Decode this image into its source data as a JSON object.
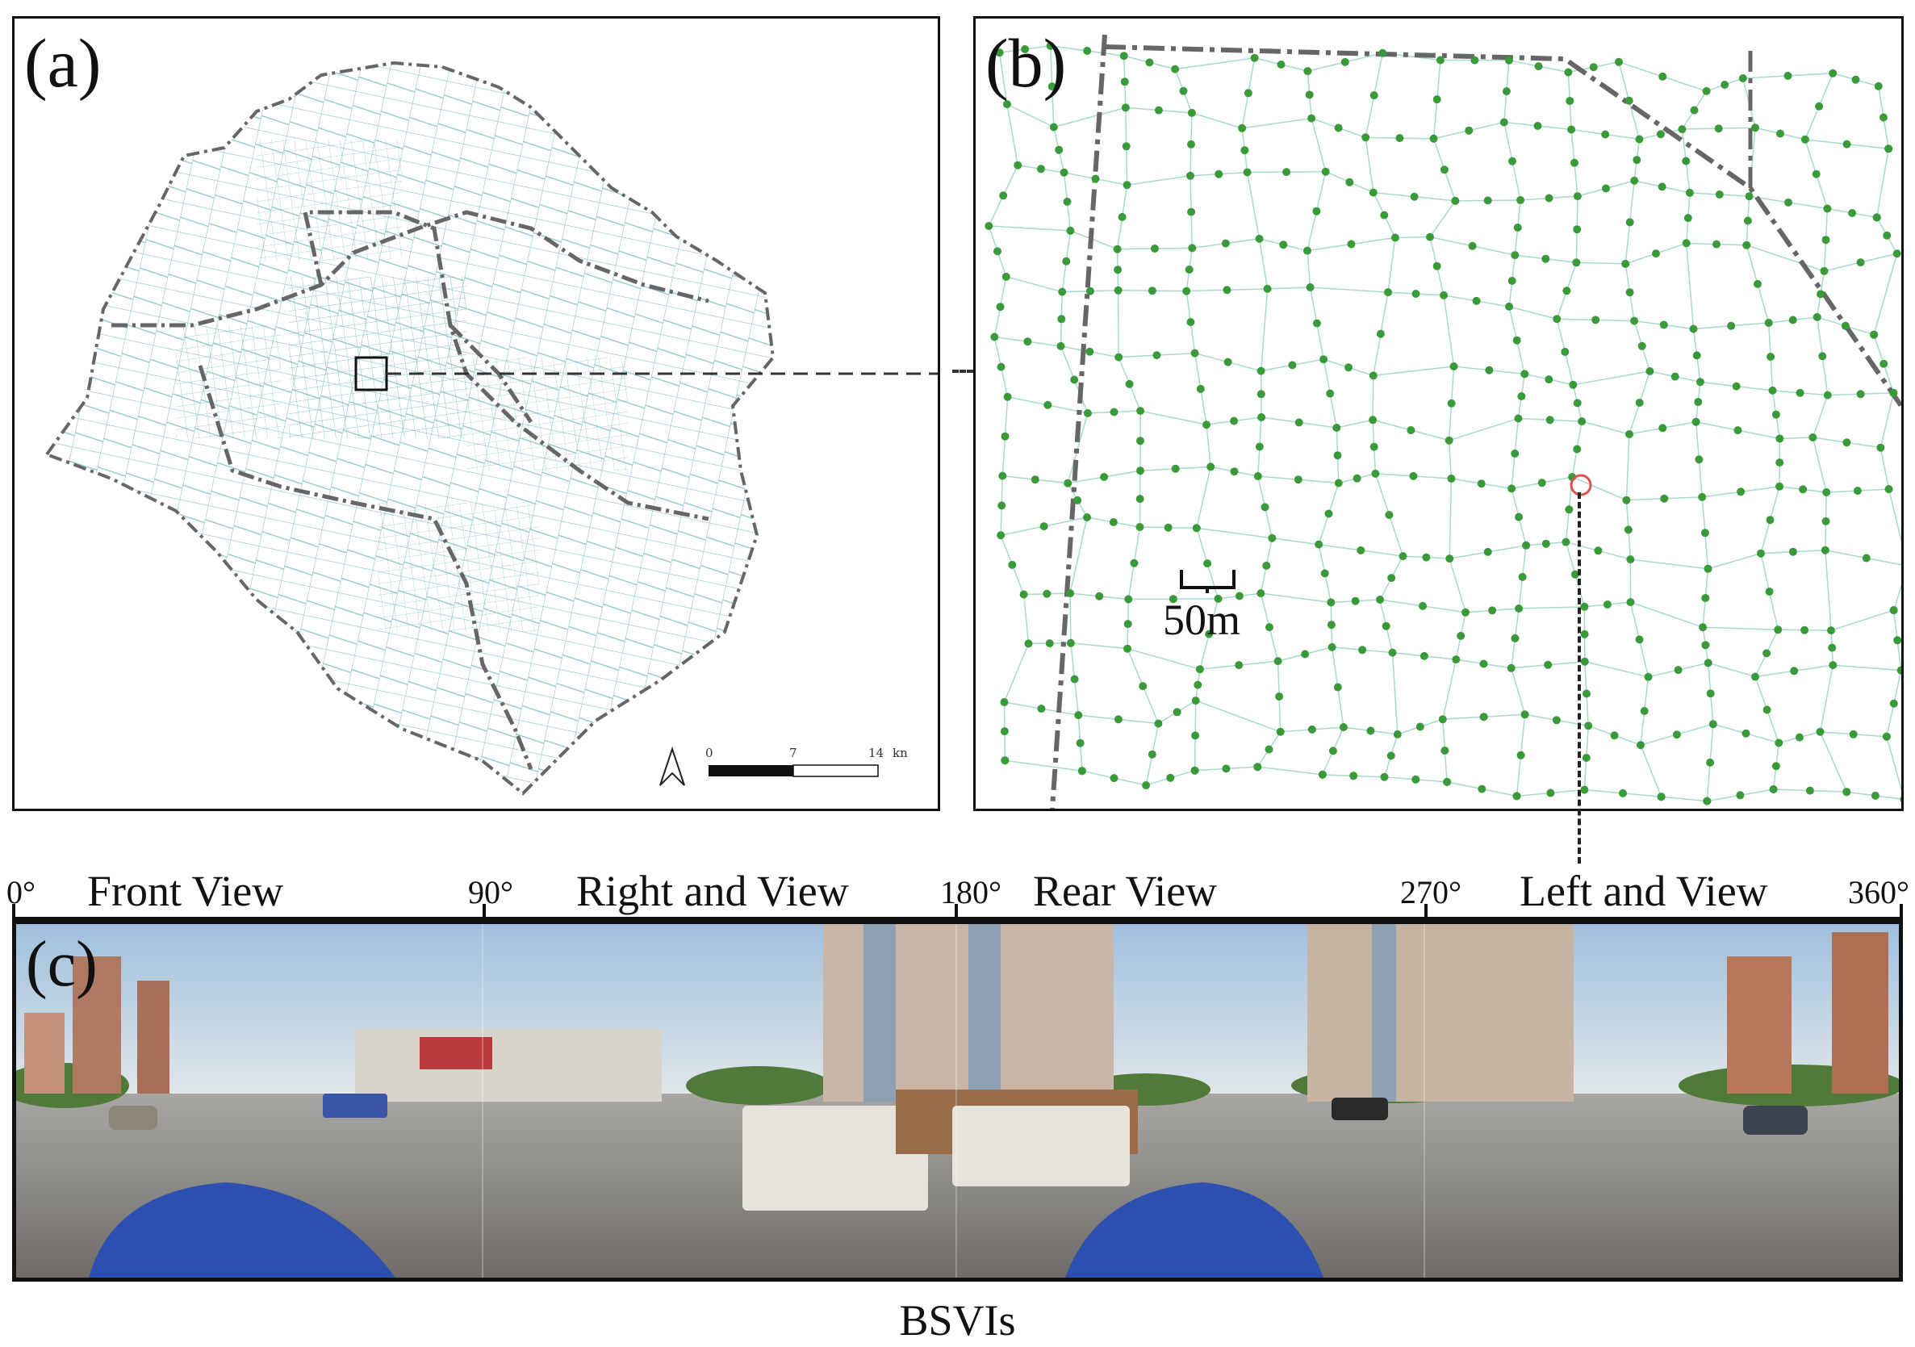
{
  "panel_a": {
    "label": "(a)",
    "scale_bar": {
      "ticks": [
        "0",
        "7",
        "14"
      ],
      "unit": "kn"
    },
    "north_arrow_icon": "north-arrow-icon",
    "colors": {
      "roads": "#7fbcc0",
      "boundary": "#666666"
    }
  },
  "panel_b": {
    "label": "(b)",
    "scale_label": "50m",
    "colors": {
      "nodes": "#3a9a3a",
      "roads": "#a8d8d0",
      "selected": "#e05050"
    }
  },
  "view_header": {
    "degrees": [
      "0°",
      "90°",
      "180°",
      "270°",
      "360°"
    ],
    "views": [
      "Front View",
      "Right and View",
      "Rear View",
      "Left and View"
    ]
  },
  "panel_c": {
    "label": "(c)"
  },
  "caption": "BSVIs"
}
